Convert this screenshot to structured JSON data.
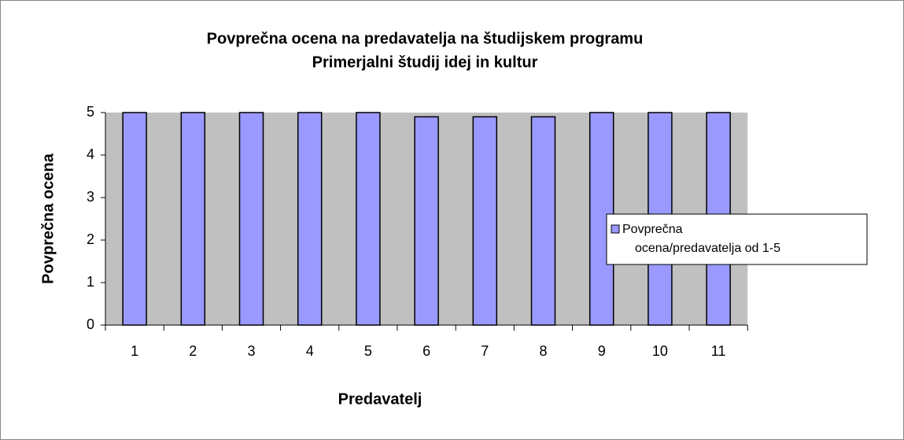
{
  "chart_data": {
    "type": "bar",
    "title": [
      "Povprečna ocena na predavatelja na študijskem programu",
      "Primerjalni študij idej in kultur"
    ],
    "x_label": "Predavatelj",
    "y_label": "Povprečna ocena",
    "categories": [
      "1",
      "2",
      "3",
      "4",
      "5",
      "6",
      "7",
      "8",
      "9",
      "10",
      "11"
    ],
    "series": [
      {
        "name": "Povprečna ocena/predavatelja od 1-5",
        "color": "#9999ff",
        "values": [
          5,
          5,
          5,
          5,
          5,
          4.9,
          4.9,
          4.9,
          5,
          5,
          5
        ]
      }
    ],
    "ylim": [
      0,
      5
    ],
    "yticks": [
      0,
      1,
      2,
      3,
      4,
      5
    ],
    "plot_background": "#c0c0c0",
    "legend": "right"
  }
}
